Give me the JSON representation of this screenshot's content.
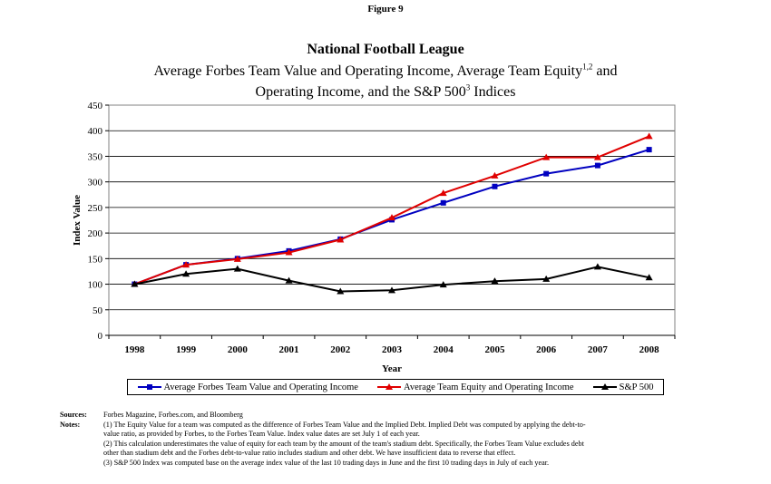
{
  "figure_label": "Figure 9",
  "title_line1": "National Football League",
  "title_line2_a": "Average Forbes Team Value and Operating Income, Average Team Equity",
  "title_line2_sup": "1,2",
  "title_line2_b": " and",
  "title_line3_a": "Operating Income, and the S&P 500",
  "title_line3_sup": "3",
  "title_line3_b": " Indices",
  "chart_data": {
    "type": "line",
    "x": [
      "1998",
      "1999",
      "2000",
      "2001",
      "2002",
      "2003",
      "2004",
      "2005",
      "2006",
      "2007",
      "2008"
    ],
    "xlabel": "Year",
    "ylabel": "Index Value",
    "ylim": [
      0,
      450
    ],
    "yticks": [
      0,
      50,
      100,
      150,
      200,
      250,
      300,
      350,
      400,
      450
    ],
    "grid": true,
    "legend": "bottom",
    "series": [
      {
        "name": "Average Forbes Team Value and Operating Income",
        "color": "#0000c0",
        "marker": "square",
        "values": [
          100,
          138,
          150,
          165,
          188,
          226,
          259,
          291,
          316,
          332,
          363
        ]
      },
      {
        "name": "Average Team Equity and Operating Income",
        "color": "#e00000",
        "marker": "triangle",
        "values": [
          100,
          138,
          149,
          162,
          187,
          230,
          278,
          312,
          348,
          348,
          389
        ]
      },
      {
        "name": "S&P 500",
        "color": "#000000",
        "marker": "triangle",
        "values": [
          100,
          120,
          130,
          107,
          86,
          88,
          99,
          106,
          110,
          134,
          113
        ]
      }
    ]
  },
  "notes": {
    "sources_label": "Sources:",
    "sources_text": "Forbes Magazine, Forbes.com, and Bloomberg",
    "notes_label": "Notes:",
    "lines": [
      "(1) The Equity Value for a team was computed as the difference of Forbes Team Value and the Implied Debt.  Implied Debt was computed by applying the debt-to-",
      "value ratio,  as provided by Forbes, to the Forbes Team Value.  Index value dates are set July 1 of each year.",
      "(2) This calculation underestimates the value of equity for each team by the amount of the team's stadium debt.  Specifically, the Forbes Team Value excludes debt",
      "other than stadium debt and the Forbes debt-to-value ratio includes stadium and other debt.  We have insufficient data to reverse that effect.",
      "(3) S&P 500 Index was computed base on the average index value of the last 10 trading days in June and the first 10 trading days in July of each year."
    ]
  }
}
